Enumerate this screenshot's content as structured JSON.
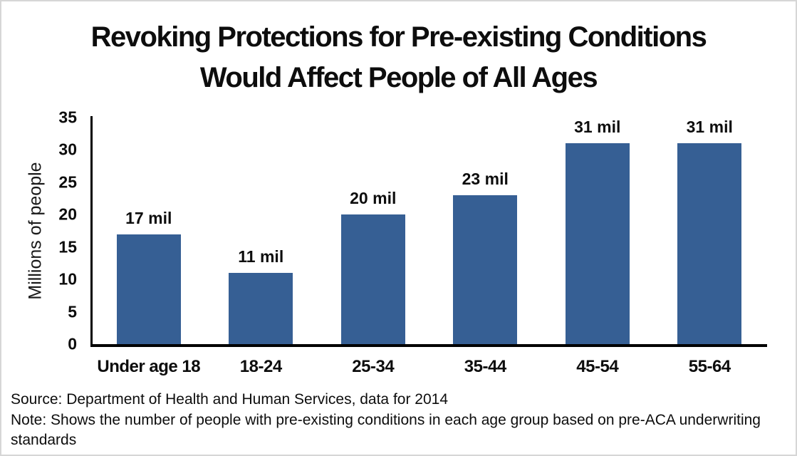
{
  "title": {
    "full": "Revoking Protections for Pre-existing Conditions Would Affect People of All Ages",
    "line1": "Revoking Protections for Pre-existing Conditions",
    "line2": "Would Affect People of All Ages"
  },
  "chart_data": {
    "type": "bar",
    "title": "Revoking Protections for Pre-existing Conditions Would Affect People of All Ages",
    "categories": [
      "Under age 18",
      "18-24",
      "25-34",
      "35-44",
      "45-54",
      "55-64"
    ],
    "values": [
      17,
      11,
      20,
      23,
      31,
      31
    ],
    "bar_labels": [
      "17 mil",
      "11 mil",
      "20 mil",
      "23 mil",
      "31 mil",
      "31 mil"
    ],
    "xlabel": "",
    "ylabel": "Millions of people",
    "ylim": [
      0,
      35
    ],
    "yticks": [
      0,
      5,
      10,
      15,
      20,
      25,
      30,
      35
    ],
    "grid": false,
    "legend": "none",
    "bar_color": "#365F94",
    "axis_color": "#000000",
    "label_color": "#0d0d0d"
  },
  "footer": {
    "source": "Source: Department of Health and Human Services, data for 2014",
    "note": "Note: Shows the number of people with pre-existing conditions in each age group based on pre-ACA underwriting standards",
    "note_lines": [
      "Note: Shows the number of people with pre-existing conditions in each age group based on pre-ACA underwriting",
      "standards"
    ]
  }
}
